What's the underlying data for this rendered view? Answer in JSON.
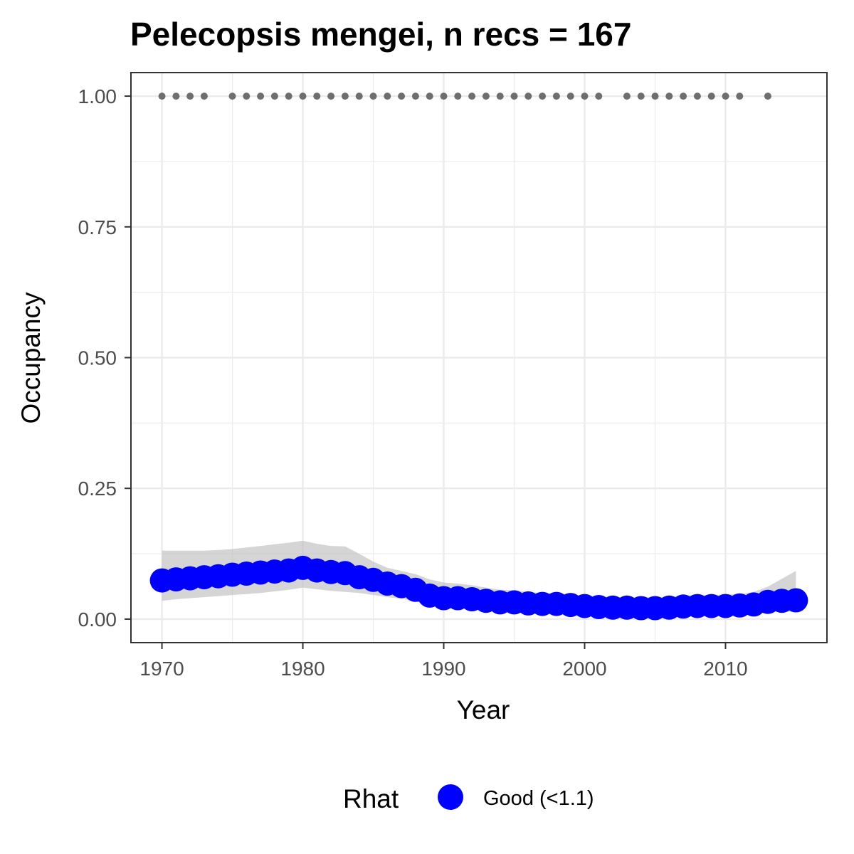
{
  "chart_data": {
    "type": "line",
    "title": "Pelecopsis mengei, n recs = 167",
    "xlabel": "Year",
    "ylabel": "Occupancy",
    "xlim": [
      1967.8,
      2017.2
    ],
    "ylim": [
      -0.045,
      1.045
    ],
    "x_ticks": [
      1970,
      1980,
      1990,
      2000,
      2010
    ],
    "x_tick_labels": [
      "1970",
      "1980",
      "1990",
      "2000",
      "2010"
    ],
    "y_ticks": [
      0,
      0.25,
      0.5,
      0.75,
      1
    ],
    "y_tick_labels": [
      "0.00",
      "0.25",
      "0.50",
      "0.75",
      "1.00"
    ],
    "grid": true,
    "legend": {
      "title": "Rhat",
      "position": "bottom",
      "entries": [
        {
          "label": "Good (<1.1)",
          "color": "#0000ff"
        }
      ]
    },
    "colors": {
      "estimate": "#0000ff",
      "ribbon": "#bebebe",
      "records": "#6e6e6e",
      "grid": "#ebebeb",
      "panel_border": "#333333"
    },
    "series": [
      {
        "role": "occupancy-estimate",
        "x": [
          1970,
          1971,
          1972,
          1973,
          1974,
          1975,
          1976,
          1977,
          1978,
          1979,
          1980,
          1981,
          1982,
          1983,
          1984,
          1985,
          1986,
          1987,
          1988,
          1989,
          1990,
          1991,
          1992,
          1993,
          1994,
          1995,
          1996,
          1997,
          1998,
          1999,
          2000,
          2001,
          2002,
          2003,
          2004,
          2005,
          2006,
          2007,
          2008,
          2009,
          2010,
          2011,
          2012,
          2013,
          2014,
          2015
        ],
        "values": [
          0.074,
          0.076,
          0.078,
          0.08,
          0.082,
          0.085,
          0.087,
          0.089,
          0.091,
          0.093,
          0.098,
          0.093,
          0.09,
          0.088,
          0.08,
          0.075,
          0.068,
          0.063,
          0.056,
          0.045,
          0.04,
          0.04,
          0.038,
          0.035,
          0.032,
          0.032,
          0.03,
          0.029,
          0.029,
          0.027,
          0.025,
          0.023,
          0.022,
          0.022,
          0.021,
          0.021,
          0.022,
          0.024,
          0.025,
          0.025,
          0.025,
          0.026,
          0.028,
          0.033,
          0.035,
          0.036
        ],
        "lower": [
          0.035,
          0.038,
          0.04,
          0.042,
          0.044,
          0.046,
          0.048,
          0.05,
          0.053,
          0.056,
          0.06,
          0.057,
          0.054,
          0.052,
          0.05,
          0.046,
          0.042,
          0.039,
          0.034,
          0.028,
          0.024,
          0.023,
          0.022,
          0.02,
          0.018,
          0.017,
          0.016,
          0.015,
          0.015,
          0.014,
          0.013,
          0.012,
          0.011,
          0.011,
          0.01,
          0.01,
          0.011,
          0.012,
          0.013,
          0.013,
          0.013,
          0.013,
          0.013,
          0.014,
          0.014,
          0.014
        ],
        "upper": [
          0.131,
          0.131,
          0.131,
          0.131,
          0.132,
          0.134,
          0.137,
          0.14,
          0.143,
          0.146,
          0.15,
          0.144,
          0.14,
          0.139,
          0.125,
          0.11,
          0.098,
          0.092,
          0.086,
          0.076,
          0.07,
          0.068,
          0.065,
          0.06,
          0.056,
          0.055,
          0.052,
          0.05,
          0.049,
          0.047,
          0.045,
          0.043,
          0.042,
          0.042,
          0.042,
          0.042,
          0.043,
          0.045,
          0.046,
          0.046,
          0.047,
          0.048,
          0.052,
          0.062,
          0.077,
          0.092
        ]
      },
      {
        "role": "recorded-years",
        "y": 1,
        "x": [
          1970,
          1971,
          1972,
          1973,
          1975,
          1976,
          1977,
          1978,
          1979,
          1980,
          1981,
          1982,
          1983,
          1984,
          1985,
          1986,
          1987,
          1988,
          1989,
          1990,
          1991,
          1992,
          1993,
          1994,
          1995,
          1996,
          1997,
          1998,
          1999,
          2000,
          2001,
          2003,
          2004,
          2005,
          2006,
          2007,
          2008,
          2009,
          2010,
          2011,
          2013
        ]
      }
    ]
  }
}
